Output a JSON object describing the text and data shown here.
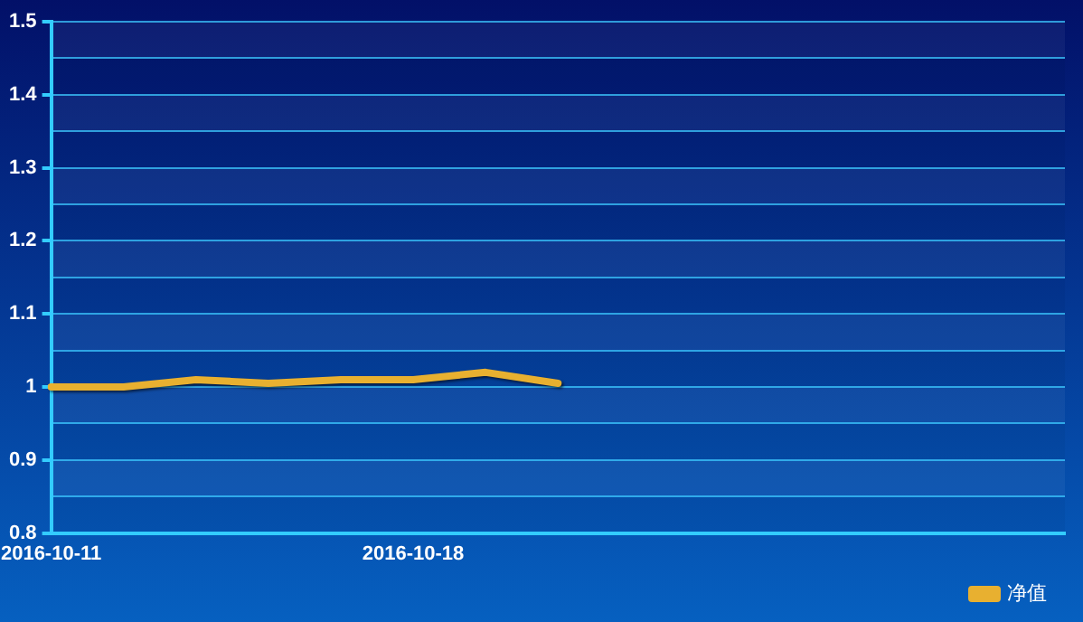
{
  "chart_data": {
    "type": "line",
    "categories": [
      "2016-10-11",
      null,
      null,
      null,
      null,
      "2016-10-18",
      null,
      null,
      null,
      null,
      null,
      null,
      null,
      null,
      null
    ],
    "series": [
      {
        "name": "净值",
        "color": "#e8b030",
        "values": [
          1.0,
          1.0,
          1.01,
          1.005,
          1.01,
          1.01,
          1.02,
          1.005,
          null,
          null,
          null,
          null,
          null,
          null,
          null
        ]
      }
    ],
    "ylim": [
      0.8,
      1.5
    ],
    "yticks": [
      0.8,
      {
        "value": 0.85,
        "label": null
      },
      0.9,
      {
        "value": 0.95,
        "label": null
      },
      1,
      {
        "value": 1.05,
        "label": null
      },
      1.1,
      {
        "value": 1.15,
        "label": null
      },
      1.2,
      {
        "value": 1.25,
        "label": null
      },
      1.3,
      {
        "value": 1.35,
        "label": null
      },
      1.4,
      {
        "value": 1.45,
        "label": null
      },
      1.5
    ],
    "grid": "y",
    "legend": "bottom right",
    "marker": "none",
    "line_style": "solid"
  }
}
